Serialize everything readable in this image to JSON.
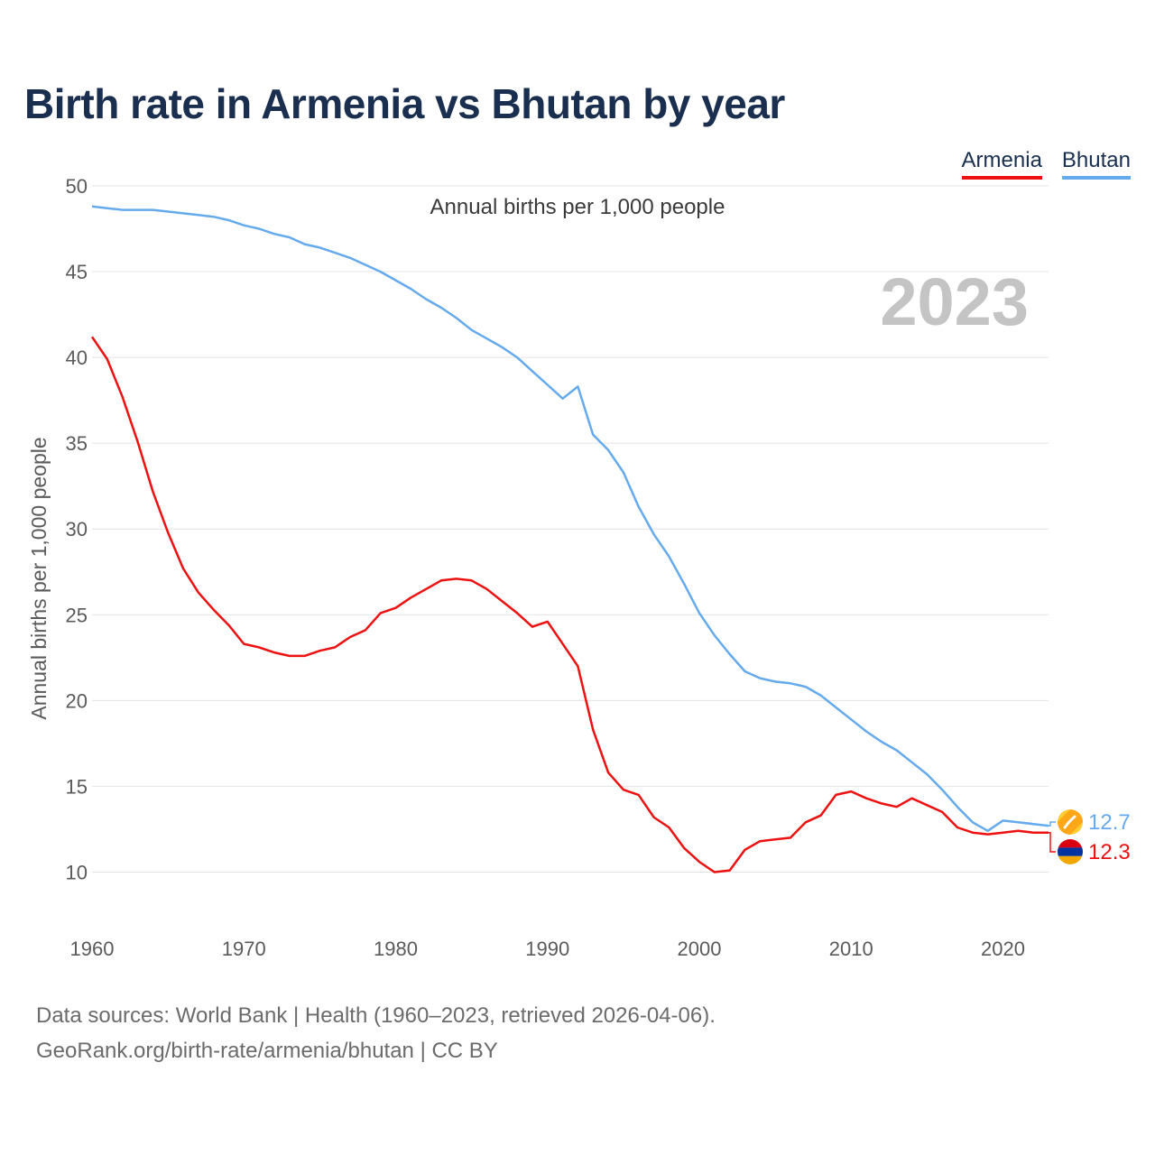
{
  "title": "Birth rate in Armenia vs Bhutan by year",
  "subtitle": "Annual births per 1,000 people",
  "legend": [
    {
      "name": "Armenia",
      "color": "#ee1111"
    },
    {
      "name": "Bhutan",
      "color": "#66aaee"
    }
  ],
  "footer": {
    "line1": "Data sources: World Bank | Health (1960–2023, retrieved 2026-04-06).",
    "line2": "GeoRank.org/birth-rate/armenia/bhutan | CC BY"
  },
  "chart_data": {
    "type": "line",
    "title": "Birth rate in Armenia vs Bhutan by year",
    "subtitle": "Annual births per 1,000 people",
    "ylabel": "Annual births per 1,000 people",
    "xlabel": "",
    "year_label": "2023",
    "xlim": [
      1960,
      2023
    ],
    "ylim": [
      7.5,
      50
    ],
    "x_ticks": [
      1960,
      1970,
      1980,
      1990,
      2000,
      2010,
      2020
    ],
    "y_ticks": [
      10,
      15,
      20,
      25,
      30,
      35,
      40,
      45,
      50
    ],
    "grid": true,
    "legend_position": "top-right",
    "x": [
      1960,
      1961,
      1962,
      1963,
      1964,
      1965,
      1966,
      1967,
      1968,
      1969,
      1970,
      1971,
      1972,
      1973,
      1974,
      1975,
      1976,
      1977,
      1978,
      1979,
      1980,
      1981,
      1982,
      1983,
      1984,
      1985,
      1986,
      1987,
      1988,
      1989,
      1990,
      1991,
      1992,
      1993,
      1994,
      1995,
      1996,
      1997,
      1998,
      1999,
      2000,
      2001,
      2002,
      2003,
      2004,
      2005,
      2006,
      2007,
      2008,
      2009,
      2010,
      2011,
      2012,
      2013,
      2014,
      2015,
      2016,
      2017,
      2018,
      2019,
      2020,
      2021,
      2022,
      2023
    ],
    "series": [
      {
        "name": "Armenia",
        "color": "#ee1111",
        "end_label": "12.3",
        "values": [
          41.2,
          39.9,
          37.7,
          35.1,
          32.2,
          29.8,
          27.7,
          26.3,
          25.3,
          24.4,
          23.3,
          23.1,
          22.8,
          22.6,
          22.6,
          22.9,
          23.1,
          23.7,
          24.1,
          25.1,
          25.4,
          26.0,
          26.5,
          27.0,
          27.1,
          27.0,
          26.5,
          25.8,
          25.1,
          24.3,
          24.6,
          23.3,
          22.0,
          18.3,
          15.8,
          14.8,
          14.5,
          13.2,
          12.6,
          11.4,
          10.6,
          10.0,
          10.1,
          11.3,
          11.8,
          11.9,
          12.0,
          12.9,
          13.3,
          14.5,
          14.7,
          14.3,
          14.0,
          13.8,
          14.3,
          13.9,
          13.5,
          12.6,
          12.3,
          12.2,
          12.3,
          12.4,
          12.3,
          12.3
        ]
      },
      {
        "name": "Bhutan",
        "color": "#66aaee",
        "end_label": "12.7",
        "values": [
          48.8,
          48.7,
          48.6,
          48.6,
          48.6,
          48.5,
          48.4,
          48.3,
          48.2,
          48.0,
          47.7,
          47.5,
          47.2,
          47.0,
          46.6,
          46.4,
          46.1,
          45.8,
          45.4,
          45.0,
          44.5,
          44.0,
          43.4,
          42.9,
          42.3,
          41.6,
          41.1,
          40.6,
          40.0,
          39.2,
          38.4,
          37.6,
          38.3,
          35.5,
          34.6,
          33.3,
          31.3,
          29.7,
          28.4,
          26.8,
          25.1,
          23.8,
          22.7,
          21.7,
          21.3,
          21.1,
          21.0,
          20.8,
          20.3,
          19.6,
          18.9,
          18.2,
          17.6,
          17.1,
          16.4,
          15.7,
          14.8,
          13.8,
          12.9,
          12.4,
          13.0,
          12.9,
          12.8,
          12.7
        ]
      }
    ]
  }
}
